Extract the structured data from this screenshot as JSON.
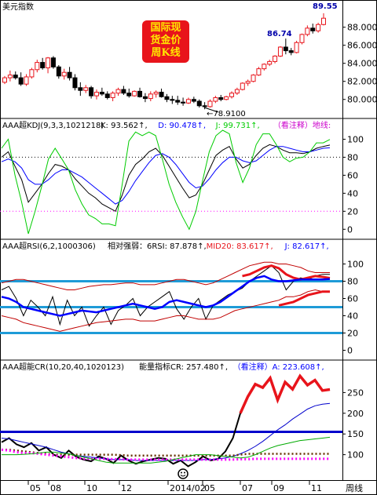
{
  "main_title": "美元指数",
  "badge_lines": [
    "国际现",
    "货金价",
    "周K线"
  ],
  "period_label": "周线",
  "x_axis_labels": [
    "05",
    "08",
    "10",
    "12",
    "2014/02",
    "05",
    "07",
    "09",
    "11"
  ],
  "colors": {
    "up": "#e8141b",
    "down": "#000000",
    "kdj_k": "#000000",
    "kdj_d": "#0000ff",
    "kdj_j": "#00cc00",
    "rsi_band": "#c00000",
    "rsi_main": "#0000ff",
    "ref_line": "#1e9bd7",
    "cr_main": "#000000",
    "cr_blue": "#0000cc",
    "cr_magenta": "#ff00ff",
    "cr_green": "#00aa00"
  },
  "icons": {
    "smiley": "smiley-icon"
  },
  "chart_data": [
    {
      "type": "candlestick",
      "title": "美元指数",
      "ylim": [
        78.5,
        89.8
      ],
      "y_ticks": [
        80,
        82,
        84,
        86,
        88
      ],
      "y_tick_labels": [
        "80.0000",
        "82.0000",
        "84.0000",
        "86.0000",
        "88.0000"
      ],
      "annotations": [
        {
          "text": "89.55",
          "value": 89.55
        },
        {
          "text": "86.74",
          "value": 86.74
        },
        {
          "text": "78.9100",
          "value": 78.91
        }
      ],
      "ohlc": [
        [
          81.9,
          82.6,
          81.7,
          82.4
        ],
        [
          82.4,
          83.2,
          82.0,
          82.7
        ],
        [
          82.7,
          83.1,
          82.2,
          82.4
        ],
        [
          82.4,
          83.0,
          81.5,
          81.7
        ],
        [
          81.7,
          82.8,
          81.5,
          82.5
        ],
        [
          82.5,
          83.5,
          82.3,
          83.3
        ],
        [
          83.3,
          84.4,
          83.0,
          84.1
        ],
        [
          84.1,
          84.6,
          83.3,
          83.5
        ],
        [
          83.5,
          84.7,
          82.9,
          84.6
        ],
        [
          84.6,
          84.8,
          83.4,
          83.6
        ],
        [
          83.6,
          83.8,
          82.3,
          82.6
        ],
        [
          82.6,
          83.4,
          82.2,
          83.0
        ],
        [
          83.0,
          83.6,
          82.1,
          82.4
        ],
        [
          82.4,
          82.8,
          81.0,
          81.3
        ],
        [
          81.3,
          81.9,
          80.4,
          81.0
        ],
        [
          81.0,
          81.6,
          80.7,
          81.3
        ],
        [
          81.3,
          81.5,
          80.1,
          80.4
        ],
        [
          80.4,
          81.1,
          80.0,
          80.8
        ],
        [
          80.8,
          81.3,
          80.4,
          80.6
        ],
        [
          80.6,
          80.9,
          80.0,
          80.2
        ],
        [
          80.2,
          80.9,
          79.8,
          80.7
        ],
        [
          80.7,
          81.3,
          80.4,
          81.1
        ],
        [
          81.1,
          81.5,
          80.5,
          80.7
        ],
        [
          80.7,
          81.2,
          80.2,
          80.4
        ],
        [
          80.4,
          81.0,
          80.3,
          80.9
        ],
        [
          80.9,
          81.3,
          80.2,
          80.3
        ],
        [
          80.3,
          80.7,
          79.7,
          80.1
        ],
        [
          80.1,
          80.9,
          79.8,
          80.6
        ],
        [
          80.6,
          81.0,
          80.2,
          80.8
        ],
        [
          80.8,
          81.2,
          80.2,
          80.3
        ],
        [
          80.3,
          80.6,
          79.7,
          80.0
        ],
        [
          80.0,
          80.4,
          79.5,
          79.9
        ],
        [
          79.9,
          80.4,
          79.4,
          79.7
        ],
        [
          79.7,
          80.2,
          79.3,
          79.6
        ],
        [
          79.6,
          80.2,
          79.5,
          80.0
        ],
        [
          80.0,
          80.3,
          79.6,
          79.8
        ],
        [
          79.8,
          80.0,
          79.1,
          79.3
        ],
        [
          79.3,
          79.7,
          78.91,
          79.2
        ],
        [
          79.2,
          80.0,
          79.1,
          79.8
        ],
        [
          79.8,
          80.4,
          79.6,
          80.2
        ],
        [
          80.2,
          80.5,
          79.8,
          80.0
        ],
        [
          80.0,
          80.4,
          79.9,
          80.3
        ],
        [
          80.3,
          80.9,
          80.1,
          80.7
        ],
        [
          80.7,
          81.3,
          80.5,
          81.1
        ],
        [
          81.1,
          81.9,
          81.0,
          81.8
        ],
        [
          81.8,
          82.2,
          81.5,
          82.0
        ],
        [
          82.0,
          82.8,
          81.9,
          82.7
        ],
        [
          82.7,
          83.6,
          82.6,
          83.4
        ],
        [
          83.4,
          84.0,
          83.2,
          83.9
        ],
        [
          83.9,
          84.4,
          83.7,
          84.2
        ],
        [
          84.2,
          84.9,
          84.0,
          84.8
        ],
        [
          84.8,
          85.9,
          84.7,
          85.8
        ],
        [
          85.8,
          86.74,
          85.0,
          85.4
        ],
        [
          85.4,
          85.7,
          84.9,
          85.2
        ],
        [
          85.2,
          86.5,
          85.1,
          86.3
        ],
        [
          86.3,
          87.3,
          86.1,
          87.2
        ],
        [
          87.2,
          88.2,
          87.0,
          87.9
        ],
        [
          87.9,
          88.4,
          87.3,
          87.6
        ],
        [
          87.6,
          88.5,
          87.4,
          88.3
        ],
        [
          88.3,
          89.55,
          88.2,
          89.0
        ]
      ]
    },
    {
      "type": "line",
      "title": "AAA超KDJ(9,3,3,1021218)",
      "ylim": [
        -5,
        110
      ],
      "y_ticks": [
        0,
        20,
        40,
        60,
        80,
        100
      ],
      "reference_lines": [
        80,
        20
      ],
      "legend": [
        {
          "text": "K: 93.562↑,",
          "color": "#000000"
        },
        {
          "text": "D: 90.478↑,",
          "color": "#0000ff"
        },
        {
          "text": "J: 99.731↑,",
          "color": "#00cc00"
        },
        {
          "text": "（看注释）地线:",
          "color": "#cc00cc"
        }
      ],
      "series": [
        {
          "name": "K",
          "values": [
            80,
            86,
            70,
            55,
            30,
            40,
            50,
            62,
            72,
            70,
            66,
            56,
            48,
            40,
            35,
            28,
            24,
            20,
            38,
            60,
            72,
            78,
            86,
            90,
            82,
            70,
            58,
            46,
            35,
            38,
            50,
            66,
            82,
            88,
            92,
            78,
            68,
            72,
            82,
            90,
            94,
            92,
            88,
            85,
            85,
            84,
            86,
            90,
            92,
            93.56
          ]
        },
        {
          "name": "D",
          "values": [
            75,
            78,
            75,
            68,
            55,
            50,
            50,
            55,
            62,
            66,
            66,
            62,
            58,
            52,
            46,
            40,
            34,
            28,
            32,
            42,
            54,
            64,
            74,
            82,
            84,
            80,
            72,
            62,
            52,
            46,
            48,
            56,
            66,
            74,
            80,
            80,
            76,
            74,
            76,
            82,
            88,
            92,
            92,
            90,
            88,
            86,
            86,
            88,
            90,
            90.48
          ]
        },
        {
          "name": "J",
          "values": [
            90,
            100,
            60,
            30,
            -5,
            20,
            48,
            78,
            90,
            78,
            66,
            44,
            28,
            16,
            12,
            6,
            6,
            4,
            50,
            98,
            108,
            104,
            108,
            104,
            78,
            50,
            30,
            14,
            0,
            20,
            54,
            86,
            104,
            110,
            106,
            74,
            52,
            68,
            94,
            106,
            106,
            94,
            80,
            75,
            79,
            80,
            86,
            96,
            96,
            99.73
          ]
        }
      ]
    },
    {
      "type": "line",
      "title": "AAA超RSI(6,2,1000306)",
      "ylim": [
        -5,
        115
      ],
      "y_ticks": [
        0,
        20,
        40,
        60,
        80,
        100
      ],
      "reference_lines": [
        80,
        50,
        20
      ],
      "legend": [
        {
          "text": "相对强弱：6RSI: 87.878↑,",
          "color": "#000000"
        },
        {
          "text": "MID20: 83.617↑,",
          "color": "#e8141b"
        },
        {
          "text": "J: 82.617↑,",
          "color": "#0000ff"
        }
      ],
      "series": [
        {
          "name": "6RSI",
          "values": [
            70,
            74,
            60,
            40,
            58,
            50,
            40,
            62,
            30,
            58,
            40,
            50,
            28,
            40,
            50,
            30,
            46,
            52,
            60,
            40,
            50,
            56,
            62,
            68,
            48,
            36,
            50,
            60,
            36,
            52,
            58,
            64,
            68,
            72,
            80,
            86,
            92,
            98,
            90,
            70,
            80,
            84,
            82,
            86,
            88,
            87.88
          ]
        },
        {
          "name": "MID20",
          "values": [
            null,
            null,
            null,
            null,
            null,
            null,
            null,
            null,
            null,
            null,
            null,
            null,
            null,
            null,
            null,
            null,
            null,
            null,
            null,
            null,
            null,
            null,
            null,
            null,
            null,
            null,
            null,
            null,
            null,
            null,
            null,
            null,
            null,
            86,
            88,
            92,
            96,
            98,
            95,
            88,
            84,
            82,
            84,
            86,
            85,
            83.62
          ]
        },
        {
          "name": "J",
          "values": [
            62,
            60,
            56,
            50,
            48,
            46,
            44,
            42,
            40,
            42,
            44,
            46,
            45,
            44,
            46,
            48,
            50,
            52,
            54,
            52,
            50,
            48,
            50,
            56,
            58,
            56,
            54,
            52,
            50,
            52,
            56,
            62,
            68,
            74,
            80,
            84,
            86,
            82,
            80,
            80,
            81,
            82,
            82,
            82,
            82,
            82.62
          ]
        },
        {
          "name": "upper",
          "values": [
            78,
            80,
            82,
            82,
            80,
            78,
            76,
            74,
            72,
            70,
            70,
            72,
            74,
            75,
            76,
            76,
            77,
            78,
            78,
            76,
            76,
            76,
            78,
            80,
            82,
            82,
            80,
            78,
            76,
            78,
            82,
            86,
            90,
            94,
            98,
            100,
            102,
            102,
            100,
            100,
            98,
            96,
            92,
            90,
            90,
            90
          ]
        },
        {
          "name": "lower",
          "values": [
            40,
            38,
            36,
            32,
            30,
            28,
            26,
            24,
            22,
            24,
            26,
            28,
            30,
            32,
            33,
            34,
            35,
            36,
            36,
            34,
            34,
            34,
            36,
            38,
            40,
            40,
            38,
            36,
            36,
            36,
            38,
            42,
            46,
            48,
            50,
            52,
            54,
            56,
            58,
            62,
            62,
            64,
            68,
            70,
            68,
            68
          ]
        }
      ]
    },
    {
      "type": "line",
      "title": "AAA超能CR(10,20,40,1020123)",
      "ylim": [
        50,
        300
      ],
      "y_ticks": [
        100,
        150,
        200,
        250
      ],
      "reference_lines": [
        155
      ],
      "legend": [
        {
          "text": "能量指标CR: 257.480↑,",
          "color": "#000000"
        },
        {
          "text": "（看注释）A: 223.608↑,",
          "color": "#0000ff"
        }
      ],
      "series": [
        {
          "name": "CR",
          "values": [
            130,
            140,
            125,
            118,
            128,
            110,
            118,
            100,
            92,
            110,
            95,
            88,
            84,
            96,
            90,
            80,
            98,
            86,
            78,
            84,
            88,
            92,
            90,
            78,
            86,
            72,
            82,
            96,
            86,
            90,
            108,
            140,
            200,
            240,
            270,
            262,
            285,
            232,
            275,
            258,
            290,
            268,
            280,
            255,
            257.48
          ]
        },
        {
          "name": "A",
          "values": [
            140,
            138,
            134,
            130,
            126,
            122,
            118,
            112,
            106,
            102,
            98,
            96,
            94,
            92,
            90,
            88,
            88,
            88,
            86,
            86,
            86,
            86,
            86,
            86,
            86,
            86,
            86,
            88,
            88,
            90,
            92,
            96,
            102,
            110,
            120,
            132,
            146,
            160,
            172,
            186,
            198,
            210,
            218,
            222,
            223.61
          ]
        },
        {
          "name": "MA1",
          "values": [
            112,
            112,
            110,
            108,
            106,
            104,
            102,
            100,
            100,
            100,
            100,
            100,
            100,
            100,
            100,
            100,
            99,
            98,
            98,
            98,
            98,
            98,
            98,
            98,
            98,
            98,
            98,
            98,
            98,
            98,
            98,
            98,
            100,
            102,
            102,
            102,
            102,
            102,
            102,
            102,
            102,
            102,
            102,
            102,
            102
          ]
        },
        {
          "name": "MA2",
          "values": [
            112,
            110,
            106,
            104,
            104,
            102,
            100,
            98,
            96,
            94,
            92,
            90,
            90,
            90,
            90,
            89,
            89,
            88,
            88,
            88,
            88,
            88,
            88,
            88,
            88,
            88,
            88,
            88,
            88,
            88,
            88,
            88,
            89,
            89,
            90,
            90,
            90,
            90,
            90,
            90,
            90,
            90,
            90,
            90,
            90
          ]
        },
        {
          "name": "MA3",
          "values": [
            100,
            100,
            100,
            101,
            102,
            104,
            106,
            106,
            104,
            102,
            98,
            94,
            90,
            86,
            82,
            80,
            80,
            80,
            80,
            80,
            80,
            82,
            84,
            88,
            92,
            96,
            100,
            100,
            100,
            98,
            96,
            94,
            92,
            94,
            100,
            108,
            116,
            122,
            126,
            130,
            134,
            136,
            138,
            140,
            142
          ]
        }
      ]
    }
  ]
}
